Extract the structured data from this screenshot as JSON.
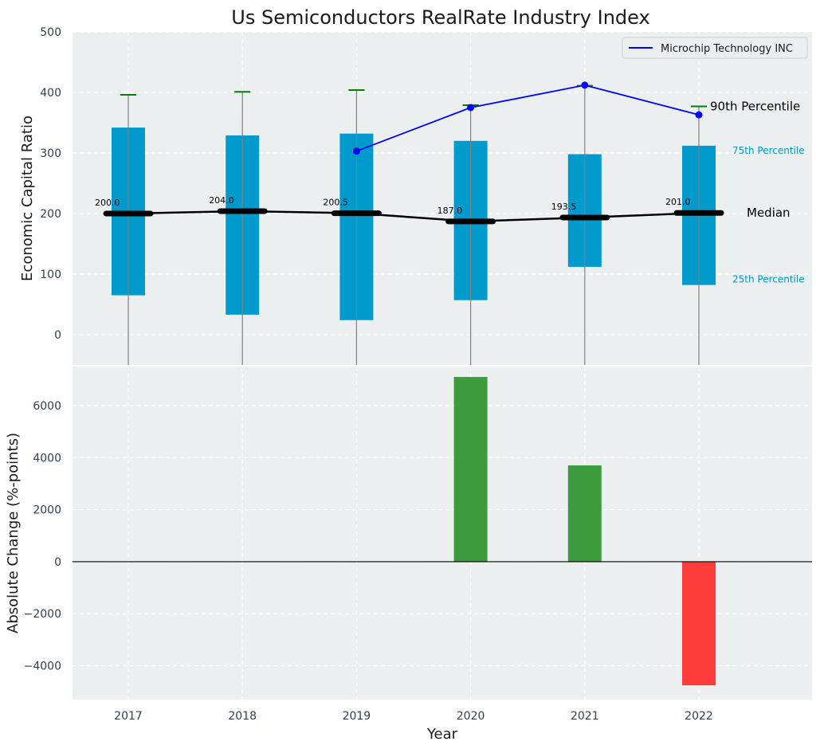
{
  "chart_data": [
    {
      "type": "box",
      "title": "Us Semiconductors RealRate Industry Index",
      "ylabel": "Economic Capital Ratio",
      "ylim": [
        -50,
        500
      ],
      "yticks": [
        0,
        100,
        200,
        300,
        400,
        500
      ],
      "categories": [
        "2017",
        "2018",
        "2019",
        "2020",
        "2021",
        "2022"
      ],
      "p25": [
        65,
        33,
        24,
        57,
        112,
        82
      ],
      "p75": [
        342,
        329,
        332,
        320,
        298,
        312
      ],
      "p90": [
        396,
        401,
        404,
        379,
        411,
        377
      ],
      "median": [
        200.0,
        204.0,
        200.5,
        187.0,
        193.5,
        201.0
      ],
      "median_labels": [
        "200.0",
        "204.0",
        "200.5",
        "187.0",
        "193.5",
        "201.0"
      ],
      "annotations": {
        "p90": "90th Percentile",
        "p75": "75th Percentile",
        "median": "Median",
        "p25": "25th Percentile"
      },
      "series": [
        {
          "name": "Microchip Technology INC",
          "categories": [
            "2019",
            "2020",
            "2021",
            "2022"
          ],
          "values": [
            303,
            375,
            412,
            363
          ]
        }
      ],
      "legend_position": "top-right",
      "grid": true
    },
    {
      "type": "bar",
      "xlabel": "Year",
      "ylabel": "Absolute Change (%-points)",
      "ylim": [
        -5300,
        7500
      ],
      "yticks": [
        -4000,
        -2000,
        0,
        2000,
        4000,
        6000
      ],
      "categories": [
        "2017",
        "2018",
        "2019",
        "2020",
        "2021",
        "2022"
      ],
      "values": [
        null,
        null,
        null,
        7100,
        3700,
        -4750
      ],
      "grid": true
    }
  ],
  "colors": {
    "box": "#009bcc",
    "median_line": "#000000",
    "p90_cap": "#008000",
    "company_line": "#0000ff",
    "positive_bar": "#3c9b3c",
    "negative_bar": "#ff3c3c",
    "pct75_text": "#0099c6",
    "background": "#ebeff0",
    "grid": "#ffffff"
  }
}
